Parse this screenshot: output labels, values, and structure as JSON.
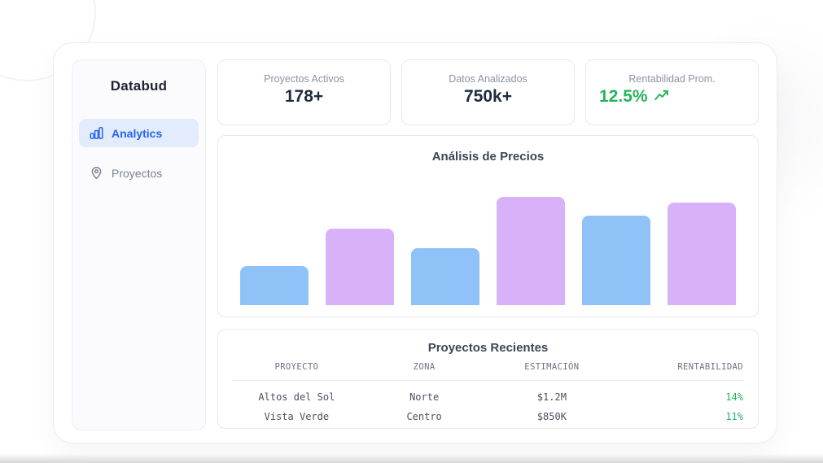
{
  "sidebar": {
    "brand": "Databud",
    "items": [
      {
        "label": "Analytics",
        "icon": "bar-chart-icon",
        "active": true
      },
      {
        "label": "Proyectos",
        "icon": "map-pin-icon",
        "active": false
      }
    ]
  },
  "stats": [
    {
      "label": "Proyectos Activos",
      "value": "178+"
    },
    {
      "label": "Datos Analizados",
      "value": "750k+"
    },
    {
      "label": "Rentabilidad Prom.",
      "value": "12.5%",
      "trend_icon": "trending-up-icon",
      "value_color": "#25b35b"
    }
  ],
  "chart": {
    "title": "Análisis de Precios"
  },
  "chart_data": {
    "type": "bar",
    "title": "Análisis de Precios",
    "categories": [
      "",
      "",
      "",
      "",
      "",
      ""
    ],
    "values": [
      36,
      71,
      53,
      100,
      83,
      95
    ],
    "ylim": [
      0,
      100
    ],
    "bar_colors": [
      "#8fc3f8",
      "#d8b1f8",
      "#8fc3f8",
      "#d8b1f8",
      "#8fc3f8",
      "#d8b1f8"
    ],
    "grid": false,
    "legend": false,
    "axis_ticks_visible": false
  },
  "table": {
    "title": "Proyectos Recientes",
    "columns": [
      "PROYECTO",
      "ZONA",
      "ESTIMACIÓN",
      "RENTABILIDAD"
    ],
    "rows": [
      {
        "proyecto": "Altos del Sol",
        "zona": "Norte",
        "estimacion": "$1.2M",
        "rentabilidad": "14%"
      },
      {
        "proyecto": "Vista Verde",
        "zona": "Centro",
        "estimacion": "$850K",
        "rentabilidad": "11%"
      }
    ]
  },
  "colors": {
    "accent_blue": "#2563eb",
    "accent_blue_bg": "#e3ecfc",
    "green": "#25b35b",
    "bar_blue": "#8fc3f8",
    "bar_purple": "#d8b1f8",
    "text_dark": "#1f2c3d",
    "text_muted": "#8a93a3"
  }
}
